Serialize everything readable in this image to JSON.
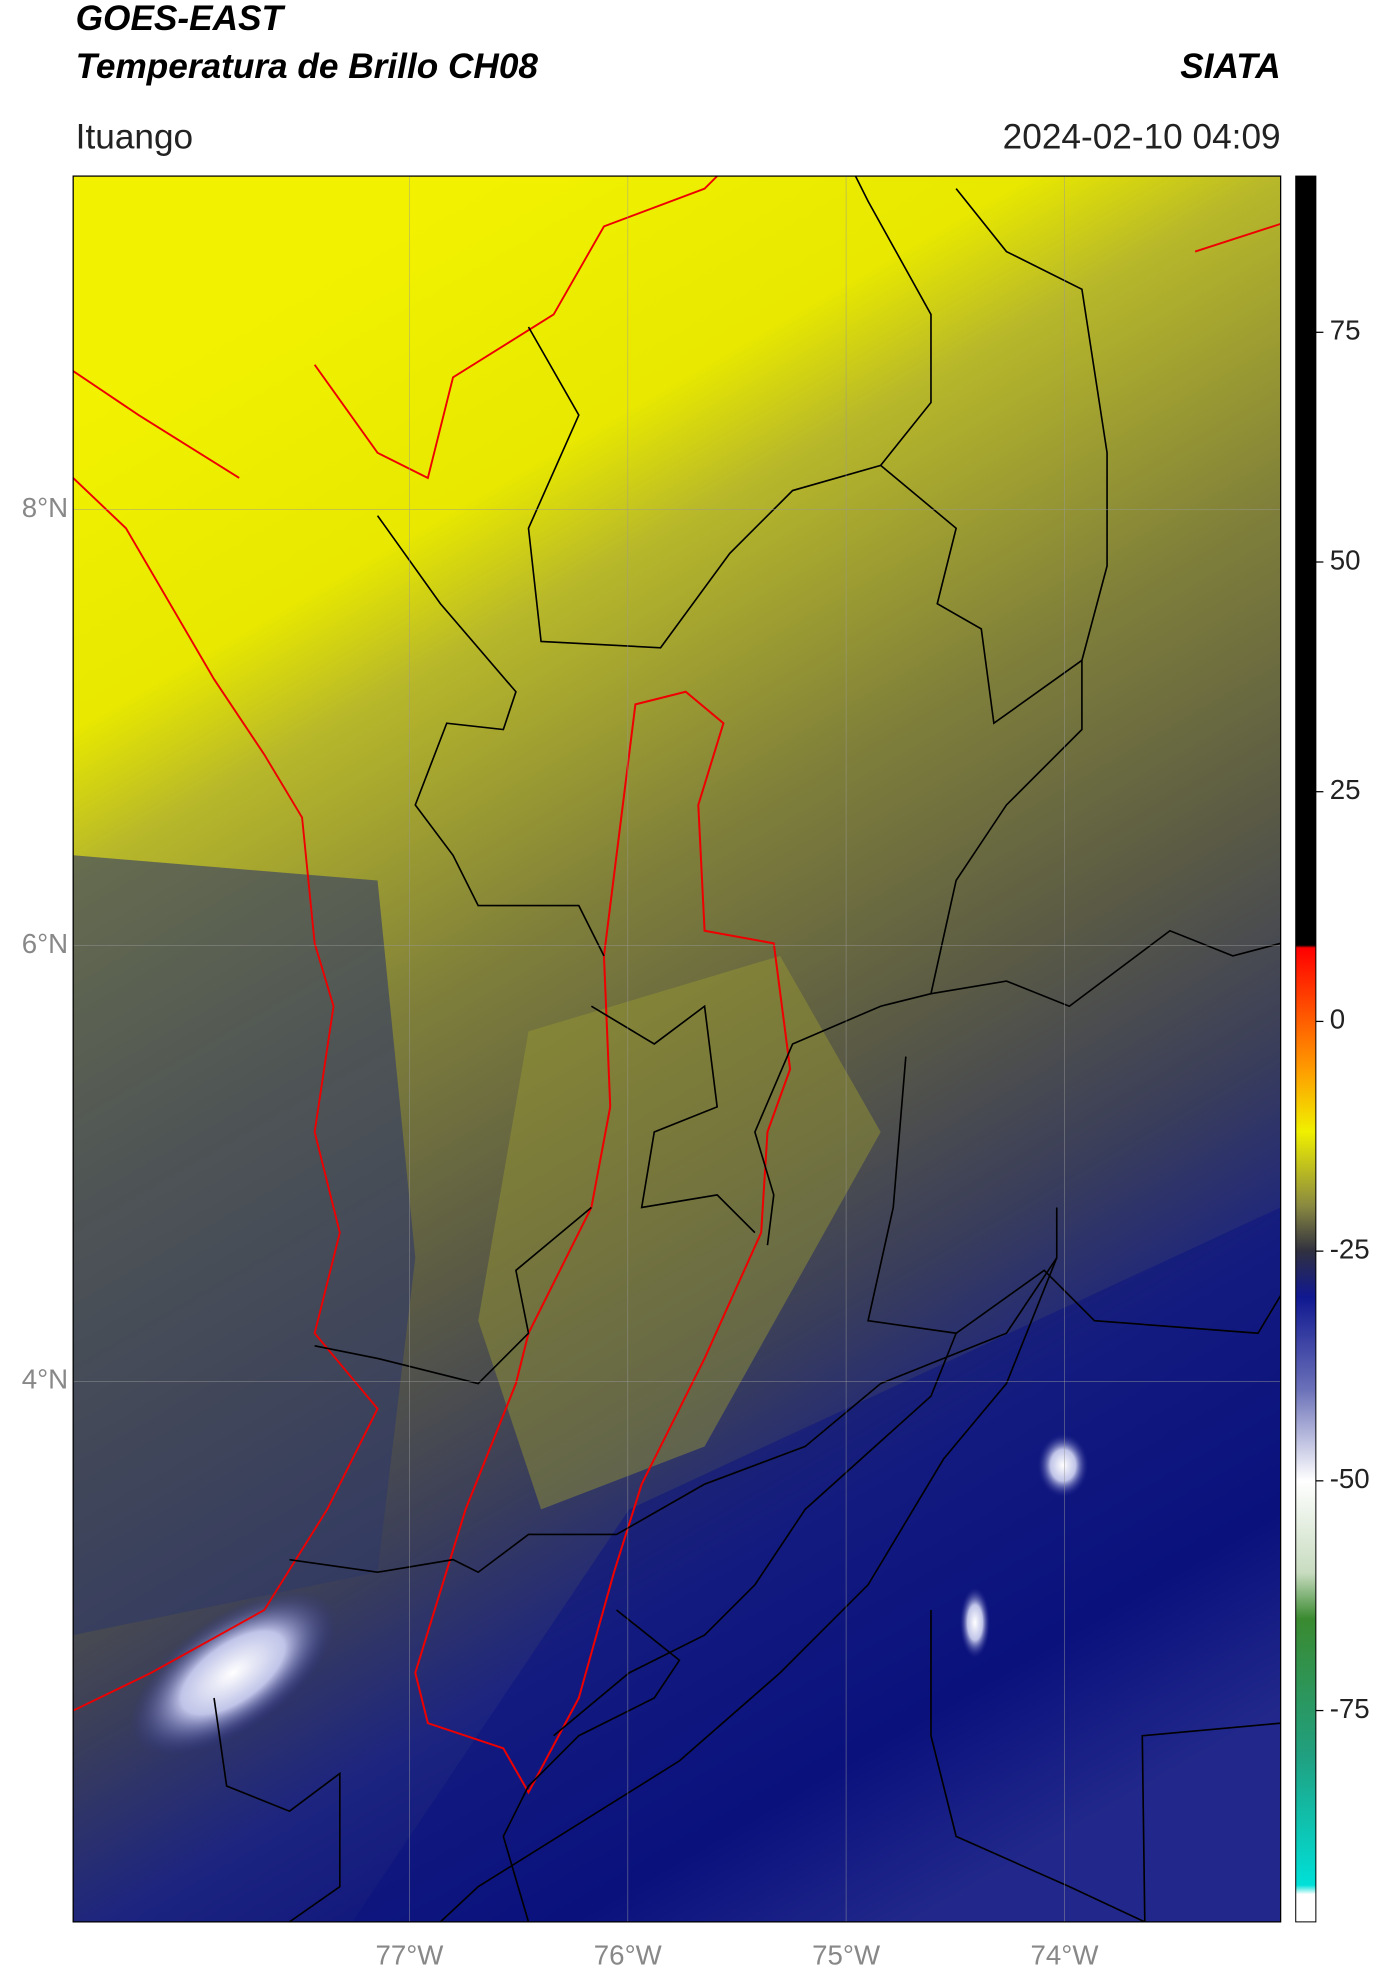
{
  "header": {
    "title": "GOES-EAST",
    "subtitle": "Temperatura de Brillo CH08",
    "organization": "SIATA",
    "location": "Ituango",
    "timestamp": "2024-02-10 04:09"
  },
  "map": {
    "xlim": [
      -78.54,
      -73.01
    ],
    "ylim": [
      1.52,
      9.53
    ],
    "xticks": [
      {
        "value": -77,
        "label": "77°W"
      },
      {
        "value": -76,
        "label": "76°W"
      },
      {
        "value": -75,
        "label": "75°W"
      },
      {
        "value": -74,
        "label": "74°W"
      }
    ],
    "yticks": [
      {
        "value": 4,
        "label": "4°N"
      },
      {
        "value": 6,
        "label": "6°N"
      },
      {
        "value": 8,
        "label": "8°N"
      }
    ],
    "grid": true
  },
  "colorbar": {
    "lim": [
      -98,
      92
    ],
    "ticks": [
      -75,
      -50,
      -25,
      0,
      25,
      50,
      75
    ],
    "stops": [
      {
        "value": -98,
        "color": "#ffffff"
      },
      {
        "value": -95,
        "color": "#ffffff"
      },
      {
        "value": -94,
        "color": "#00e0d8"
      },
      {
        "value": -80,
        "color": "#20a080"
      },
      {
        "value": -65,
        "color": "#3a8a30"
      },
      {
        "value": -60,
        "color": "#c8dcc0"
      },
      {
        "value": -50,
        "color": "#ffffff"
      },
      {
        "value": -40,
        "color": "#6a70b8"
      },
      {
        "value": -30,
        "color": "#101890"
      },
      {
        "value": -25,
        "color": "#303040"
      },
      {
        "value": -20,
        "color": "#8a8a40"
      },
      {
        "value": -12,
        "color": "#f0f000"
      },
      {
        "value": -5,
        "color": "#ff9900"
      },
      {
        "value": 8,
        "color": "#ff0000"
      },
      {
        "value": 8.3,
        "color": "#000000"
      },
      {
        "value": 92,
        "color": "#000000"
      }
    ]
  }
}
